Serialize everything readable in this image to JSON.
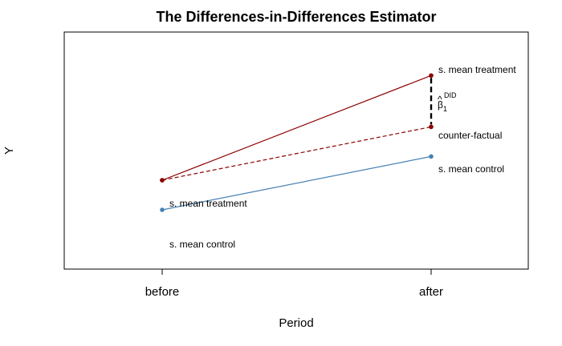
{
  "chart_data": {
    "type": "line",
    "title": "The Differences-in-Differences Estimator",
    "xlabel": "Period",
    "ylabel": "Y",
    "categories": [
      "before",
      "after"
    ],
    "ylim": [
      0,
      12
    ],
    "grid": false,
    "series": [
      {
        "name": "s. mean treatment",
        "values": [
          4.5,
          9.8
        ],
        "color": "#8B0000",
        "style": "solid"
      },
      {
        "name": "counter-factual",
        "values": [
          4.5,
          7.2
        ],
        "color": "#8B0000",
        "style": "dashed"
      },
      {
        "name": "s. mean control",
        "values": [
          3.0,
          5.7
        ],
        "color": "#4682B4",
        "style": "solid"
      }
    ],
    "annotations": {
      "before_treatment": "s. mean treatment",
      "before_control": "s. mean control",
      "after_treatment": "s. mean treatment",
      "after_counterfactual": "counter-factual",
      "after_control": "s. mean control",
      "beta_hat": "β",
      "beta_hat_accent": "^",
      "beta_sup": "DID",
      "beta_sub": "1"
    }
  }
}
